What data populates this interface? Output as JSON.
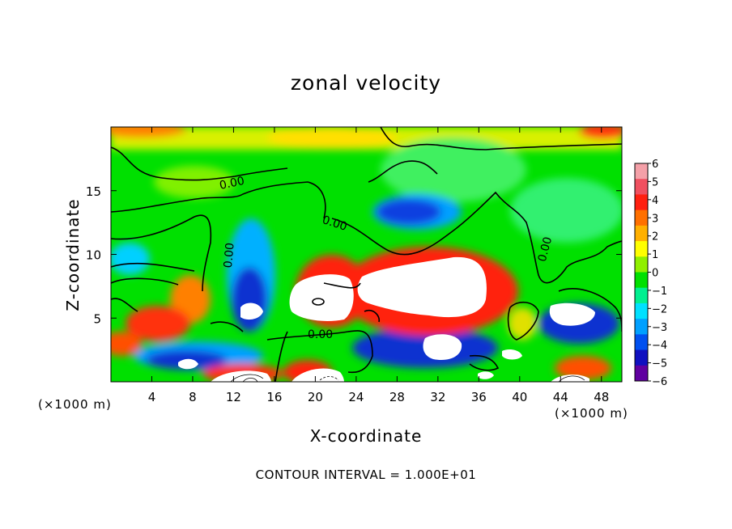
{
  "chart_data": {
    "type": "heatmap",
    "title": "zonal velocity",
    "xlabel": "X-coordinate",
    "ylabel": "Z-coordinate",
    "x_unit_label": "(×1000 m)",
    "xlim": [
      0,
      50
    ],
    "ylim": [
      0,
      20
    ],
    "x_ticks": [
      4,
      8,
      12,
      16,
      20,
      24,
      28,
      32,
      36,
      40,
      44,
      48
    ],
    "y_ticks": [
      5,
      10,
      15
    ],
    "colorbar": {
      "ticks": [
        6,
        5,
        4,
        3,
        2,
        1,
        0,
        -1,
        -2,
        -3,
        -4,
        -5,
        -6
      ],
      "colors": [
        "#f4a0a8",
        "#f05060",
        "#ff2010",
        "#ff7000",
        "#ffb000",
        "#ffff00",
        "#90f000",
        "#00e000",
        "#00f090",
        "#00e0ff",
        "#00a0ff",
        "#0050f0",
        "#1010c0",
        "#6000a0"
      ]
    },
    "contour_labels": [
      "0.00",
      "0.00",
      "0.00",
      "0.00",
      "0.00"
    ],
    "contour_interval_text": "CONTOUR INTERVAL = 1.000E+01"
  }
}
